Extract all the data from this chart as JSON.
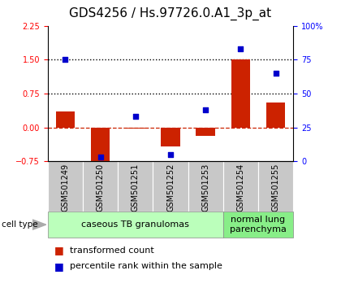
{
  "title": "GDS4256 / Hs.97726.0.A1_3p_at",
  "samples": [
    "GSM501249",
    "GSM501250",
    "GSM501251",
    "GSM501252",
    "GSM501253",
    "GSM501254",
    "GSM501255"
  ],
  "transformed_count": [
    0.35,
    -0.85,
    -0.02,
    -0.42,
    -0.18,
    1.5,
    0.55
  ],
  "percentile_rank": [
    75,
    3,
    33,
    5,
    38,
    83,
    65
  ],
  "left_ylim": [
    -0.75,
    2.25
  ],
  "right_ylim": [
    0,
    100
  ],
  "left_yticks": [
    -0.75,
    0,
    0.75,
    1.5,
    2.25
  ],
  "right_yticks": [
    0,
    25,
    50,
    75,
    100
  ],
  "right_yticklabels": [
    "0",
    "25",
    "50",
    "75",
    "100%"
  ],
  "hlines": [
    0.75,
    1.5
  ],
  "cell_type_groups": [
    {
      "label": "caseous TB granulomas",
      "start": 0,
      "end": 4,
      "color": "#bbffbb"
    },
    {
      "label": "normal lung\nparenchyma",
      "start": 5,
      "end": 6,
      "color": "#88ee88"
    }
  ],
  "bar_color": "#cc2200",
  "dot_color": "#0000cc",
  "zero_line_color": "#cc2200",
  "hline_color": "#000000",
  "title_fontsize": 11,
  "tick_fontsize": 7,
  "sample_label_fontsize": 7,
  "celltype_fontsize": 8,
  "legend_fontsize": 8,
  "bar_width": 0.55
}
